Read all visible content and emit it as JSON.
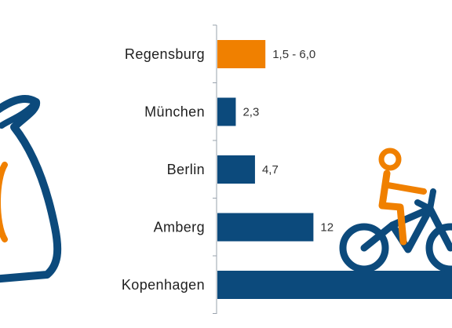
{
  "chart_data": {
    "type": "bar",
    "orientation": "horizontal",
    "categories": [
      "Regensburg",
      "München",
      "Berlin",
      "Amberg",
      "Kopenhagen"
    ],
    "values": [
      6.0,
      2.3,
      4.7,
      12,
      null
    ],
    "value_labels": [
      "1,5 - 6,0",
      "2,3",
      "4,7",
      "12",
      ""
    ],
    "highlight_category": "Regensburg",
    "xlim": [
      0,
      25
    ],
    "grid": false,
    "colors": {
      "bar": "#0c4a7c",
      "highlight": "#f08000",
      "axis": "#9aa3ad"
    }
  },
  "illustrations": {
    "money_bag_icon": {
      "outline": "#0c4a7c",
      "symbol": "#f08000"
    },
    "cyclist_icon": {
      "bike": "#0c4a7c",
      "rider": "#f08000"
    }
  }
}
